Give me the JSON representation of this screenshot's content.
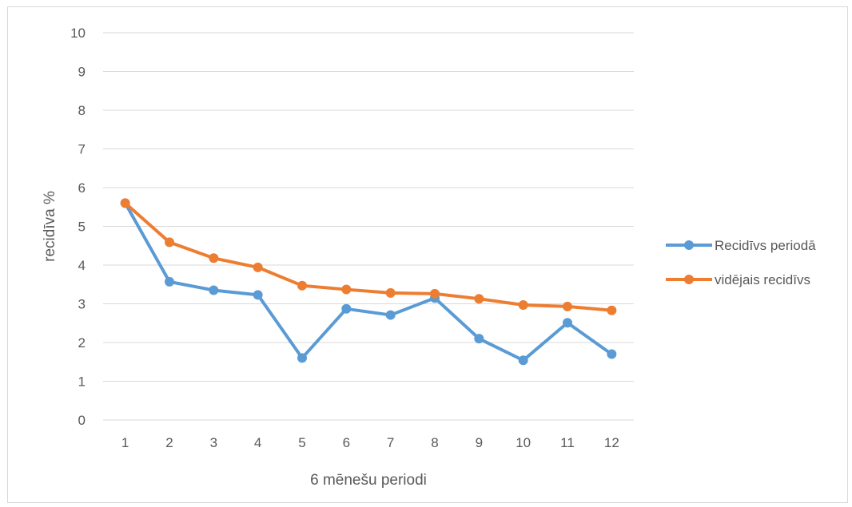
{
  "chart_data": {
    "type": "line",
    "title": "",
    "xlabel": "6 mēnešu periodi",
    "ylabel": "recidīva %",
    "ylim": [
      0,
      10
    ],
    "yticks": [
      0,
      1,
      2,
      3,
      4,
      5,
      6,
      7,
      8,
      9,
      10
    ],
    "categories": [
      "1",
      "2",
      "3",
      "4",
      "5",
      "6",
      "7",
      "8",
      "9",
      "10",
      "11",
      "12"
    ],
    "grid": true,
    "legend_position": "right",
    "series": [
      {
        "name": "Recidīvs periodā",
        "color": "#5b9bd5",
        "values": [
          5.6,
          3.57,
          3.35,
          3.23,
          1.6,
          2.87,
          2.71,
          3.15,
          2.1,
          1.54,
          2.51,
          1.7
        ]
      },
      {
        "name": "vidējais recidīvs",
        "color": "#ed7d31",
        "values": [
          5.6,
          4.59,
          4.18,
          3.94,
          3.47,
          3.37,
          3.28,
          3.26,
          3.13,
          2.97,
          2.93,
          2.83
        ]
      }
    ]
  }
}
